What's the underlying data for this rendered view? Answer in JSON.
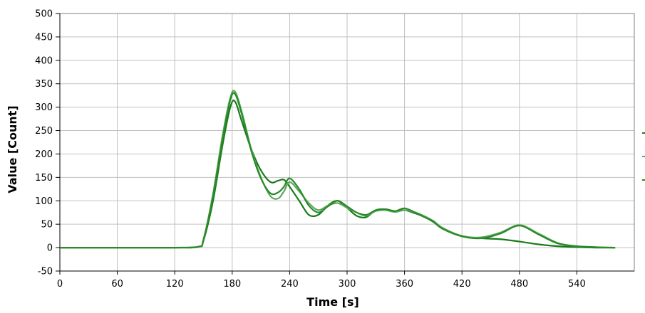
{
  "chart_data": {
    "type": "line",
    "title": "",
    "xlabel": "Time [s]",
    "ylabel": "Value [Count]",
    "xlim": [
      0,
      600
    ],
    "ylim": [
      -50,
      500
    ],
    "xticks": [
      0,
      60,
      120,
      180,
      240,
      300,
      360,
      420,
      480,
      540
    ],
    "yticks": [
      -50,
      0,
      50,
      100,
      150,
      200,
      250,
      300,
      350,
      400,
      450,
      500
    ],
    "grid": true,
    "legend": "right",
    "colors": [
      "#1a7a1a",
      "#5aa85a",
      "#2a8a2a"
    ],
    "series": [
      {
        "x": [
          0,
          60,
          120,
          145,
          150,
          160,
          170,
          178,
          183,
          190,
          200,
          210,
          220,
          228,
          234,
          240,
          250,
          260,
          270,
          280,
          290,
          300,
          310,
          320,
          330,
          340,
          350,
          360,
          370,
          380,
          390,
          400,
          420,
          440,
          460,
          480,
          500,
          520,
          540,
          560,
          580
        ],
        "y": [
          0,
          0,
          0,
          2,
          15,
          100,
          220,
          300,
          312,
          270,
          210,
          165,
          140,
          143,
          145,
          130,
          100,
          70,
          70,
          90,
          100,
          85,
          68,
          65,
          80,
          82,
          78,
          80,
          74,
          66,
          55,
          40,
          25,
          20,
          18,
          13,
          7,
          3,
          1,
          0,
          0
        ]
      },
      {
        "x": [
          0,
          60,
          120,
          145,
          150,
          160,
          170,
          178,
          183,
          190,
          200,
          210,
          220,
          228,
          234,
          240,
          250,
          260,
          270,
          280,
          290,
          300,
          310,
          320,
          330,
          340,
          350,
          360,
          370,
          380,
          390,
          400,
          420,
          440,
          460,
          480,
          500,
          520,
          540,
          560,
          580
        ],
        "y": [
          0,
          0,
          0,
          2,
          18,
          115,
          240,
          320,
          333,
          290,
          210,
          150,
          110,
          105,
          120,
          140,
          120,
          95,
          80,
          90,
          95,
          85,
          75,
          68,
          78,
          80,
          76,
          80,
          76,
          68,
          57,
          42,
          25,
          22,
          32,
          48,
          30,
          10,
          3,
          1,
          0
        ]
      },
      {
        "x": [
          0,
          60,
          120,
          145,
          150,
          160,
          170,
          178,
          183,
          190,
          200,
          210,
          220,
          228,
          234,
          240,
          250,
          260,
          270,
          280,
          290,
          300,
          310,
          320,
          330,
          340,
          350,
          360,
          370,
          380,
          390,
          400,
          420,
          440,
          460,
          480,
          500,
          520,
          540,
          560,
          580
        ],
        "y": [
          0,
          0,
          0,
          2,
          16,
          110,
          232,
          315,
          328,
          285,
          206,
          148,
          116,
          118,
          130,
          148,
          125,
          90,
          75,
          88,
          100,
          88,
          75,
          70,
          80,
          82,
          78,
          84,
          76,
          66,
          56,
          40,
          24,
          20,
          30,
          47,
          28,
          9,
          3,
          1,
          0
        ]
      }
    ]
  }
}
